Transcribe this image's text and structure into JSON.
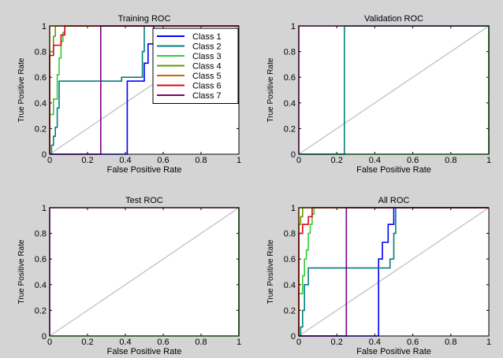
{
  "colors": {
    "background": "#d4d4d4",
    "axes_face": "#ffffff",
    "diagonal": "#c8c8c8",
    "class_1": "#0000ff",
    "class_2": "#008080",
    "class_3": "#33cc33",
    "class_4": "#669900",
    "class_5": "#cc6600",
    "class_6": "#e2001a",
    "class_7": "#800080"
  },
  "legend_labels": [
    "Class 1",
    "Class 2",
    "Class 3",
    "Class 4",
    "Class 5",
    "Class 6",
    "Class 7"
  ],
  "chart_data": [
    {
      "type": "line",
      "title": "Training ROC",
      "xlabel": "False Positive Rate",
      "ylabel": "True Positive Rate",
      "xlim": [
        0,
        1
      ],
      "ylim": [
        0,
        1
      ],
      "xticks": [
        "0",
        "0.2",
        "0.4",
        "0.6",
        "0.8",
        "1"
      ],
      "yticks": [
        "0",
        "0.2",
        "0.4",
        "0.6",
        "0.8",
        "1"
      ],
      "grid": false,
      "legend": "top-right",
      "diagonal": true,
      "series": [
        {
          "name": "Class 1",
          "x": [
            0,
            0.41,
            0.41,
            0.5,
            0.5,
            0.52,
            0.52,
            0.55,
            0.55,
            1
          ],
          "y": [
            0,
            0,
            0.57,
            0.57,
            0.71,
            0.71,
            0.86,
            0.86,
            1,
            1
          ]
        },
        {
          "name": "Class 2",
          "x": [
            0,
            0.01,
            0.01,
            0.02,
            0.02,
            0.03,
            0.03,
            0.04,
            0.04,
            0.05,
            0.05,
            0.38,
            0.38,
            0.49,
            0.49,
            0.5,
            0.5,
            1
          ],
          "y": [
            0,
            0,
            0.07,
            0.07,
            0.14,
            0.14,
            0.21,
            0.21,
            0.36,
            0.36,
            0.57,
            0.57,
            0.6,
            0.6,
            0.8,
            0.8,
            1,
            1
          ]
        },
        {
          "name": "Class 3",
          "x": [
            0,
            0,
            0.02,
            0.02,
            0.04,
            0.04,
            0.05,
            0.05,
            0.06,
            0.06,
            0.07,
            0.07,
            0.08,
            0.08,
            1
          ],
          "y": [
            0,
            0.31,
            0.31,
            0.43,
            0.43,
            0.62,
            0.62,
            0.75,
            0.75,
            0.88,
            0.88,
            0.95,
            0.95,
            1,
            1
          ]
        },
        {
          "name": "Class 4",
          "x": [
            0,
            0,
            0.02,
            0.02,
            0.03,
            0.03,
            1
          ],
          "y": [
            0,
            0.8,
            0.8,
            0.92,
            0.92,
            1,
            1
          ]
        },
        {
          "name": "Class 5",
          "x": [
            0,
            0,
            1
          ],
          "y": [
            0,
            1,
            1
          ]
        },
        {
          "name": "Class 6",
          "x": [
            0,
            0,
            0.02,
            0.02,
            0.06,
            0.06,
            0.08,
            0.08,
            1
          ],
          "y": [
            0,
            0.77,
            0.77,
            0.85,
            0.85,
            0.93,
            0.93,
            1,
            1
          ]
        },
        {
          "name": "Class 7",
          "x": [
            0,
            0.27,
            0.27,
            1
          ],
          "y": [
            0,
            0,
            1,
            1
          ]
        }
      ]
    },
    {
      "type": "line",
      "title": "Validation ROC",
      "xlabel": "False Positive Rate",
      "ylabel": "True Positive Rate",
      "xlim": [
        0,
        1
      ],
      "ylim": [
        0,
        1
      ],
      "xticks": [
        "0",
        "0.2",
        "0.4",
        "0.6",
        "0.8",
        "1"
      ],
      "yticks": [
        "0",
        "0.2",
        "0.4",
        "0.6",
        "0.8",
        "1"
      ],
      "grid": false,
      "diagonal": true,
      "series": [
        {
          "name": "Class 7",
          "x": [
            0,
            0,
            1,
            1
          ],
          "y": [
            0,
            1,
            1,
            0
          ]
        },
        {
          "name": "Class 3",
          "x": [
            0,
            1,
            1
          ],
          "y": [
            0,
            0,
            1
          ]
        },
        {
          "name": "Class 2",
          "x": [
            0,
            0.24,
            0.24,
            1
          ],
          "y": [
            0,
            0,
            1,
            1
          ]
        }
      ]
    },
    {
      "type": "line",
      "title": "Test ROC",
      "xlabel": "False Positive Rate",
      "ylabel": "True Positive Rate",
      "xlim": [
        0,
        1
      ],
      "ylim": [
        0,
        1
      ],
      "xticks": [
        "0",
        "0.2",
        "0.4",
        "0.6",
        "0.8",
        "1"
      ],
      "yticks": [
        "0",
        "0.2",
        "0.4",
        "0.6",
        "0.8",
        "1"
      ],
      "grid": false,
      "diagonal": true,
      "series": [
        {
          "name": "Class 7",
          "x": [
            0,
            0,
            1,
            1
          ],
          "y": [
            0,
            1,
            1,
            0
          ]
        },
        {
          "name": "Class 3",
          "x": [
            0,
            1,
            1
          ],
          "y": [
            0,
            0,
            1
          ]
        }
      ]
    },
    {
      "type": "line",
      "title": "All ROC",
      "xlabel": "False Positive Rate",
      "ylabel": "True Positive Rate",
      "xlim": [
        0,
        1
      ],
      "ylim": [
        0,
        1
      ],
      "xticks": [
        "0",
        "0.2",
        "0.4",
        "0.6",
        "0.8",
        "1"
      ],
      "yticks": [
        "0",
        "0.2",
        "0.4",
        "0.6",
        "0.8",
        "1"
      ],
      "grid": false,
      "diagonal": true,
      "series": [
        {
          "name": "Class 1",
          "x": [
            0,
            0.42,
            0.42,
            0.44,
            0.44,
            0.47,
            0.47,
            0.5,
            0.5,
            1
          ],
          "y": [
            0,
            0,
            0.6,
            0.6,
            0.73,
            0.73,
            0.87,
            0.87,
            1,
            1
          ]
        },
        {
          "name": "Class 2",
          "x": [
            0,
            0.01,
            0.01,
            0.02,
            0.02,
            0.03,
            0.03,
            0.05,
            0.05,
            0.48,
            0.48,
            0.5,
            0.5,
            0.51,
            0.51,
            1
          ],
          "y": [
            0,
            0,
            0.07,
            0.07,
            0.2,
            0.2,
            0.4,
            0.4,
            0.53,
            0.53,
            0.6,
            0.6,
            0.8,
            0.8,
            1,
            1
          ]
        },
        {
          "name": "Class 3",
          "x": [
            0,
            0,
            0.02,
            0.02,
            0.03,
            0.03,
            0.04,
            0.04,
            0.05,
            0.05,
            0.06,
            0.06,
            0.07,
            0.07,
            0.08,
            0.08,
            1
          ],
          "y": [
            0,
            0.33,
            0.33,
            0.47,
            0.47,
            0.6,
            0.6,
            0.67,
            0.67,
            0.8,
            0.8,
            0.87,
            0.87,
            0.95,
            0.95,
            1,
            1
          ]
        },
        {
          "name": "Class 4",
          "x": [
            0,
            0,
            0.01,
            0.01,
            0.02,
            0.02,
            1
          ],
          "y": [
            0,
            0.87,
            0.87,
            0.93,
            0.93,
            1,
            1
          ]
        },
        {
          "name": "Class 5",
          "x": [
            0,
            0,
            1
          ],
          "y": [
            0,
            1,
            1
          ]
        },
        {
          "name": "Class 6",
          "x": [
            0,
            0,
            0.02,
            0.02,
            0.05,
            0.05,
            0.07,
            0.07,
            1
          ],
          "y": [
            0,
            0.8,
            0.8,
            0.87,
            0.87,
            0.93,
            0.93,
            1,
            1
          ]
        },
        {
          "name": "Class 7",
          "x": [
            0,
            0.25,
            0.25,
            1
          ],
          "y": [
            0,
            0,
            1,
            1
          ]
        }
      ]
    }
  ]
}
